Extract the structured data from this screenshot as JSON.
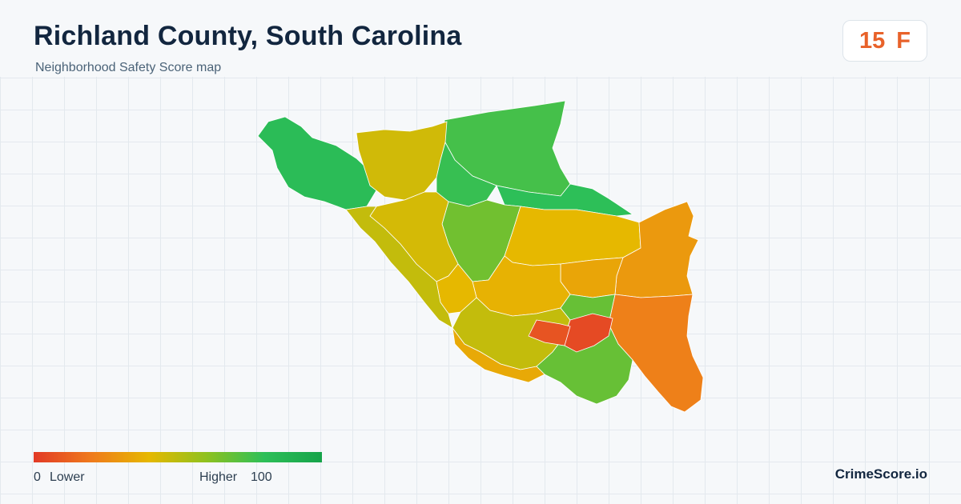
{
  "header": {
    "title": "Richland County, South Carolina",
    "subtitle": "Neighborhood Safety Score map"
  },
  "score": {
    "value": "15",
    "grade": "F",
    "color": "#e8622a"
  },
  "legend": {
    "min_value": "0",
    "min_label": "Lower",
    "max_label": "Higher",
    "max_value": "100",
    "gradient_colors": [
      "#e23a26",
      "#ef7a1c",
      "#e6b800",
      "#8ec11f",
      "#2dbf58",
      "#16a34a"
    ]
  },
  "brand": {
    "name": "CrimeScore.io"
  },
  "map": {
    "region": "Richland County",
    "regions": [
      {
        "score": 82
      },
      {
        "score": 75
      },
      {
        "score": 45
      },
      {
        "score": 78
      },
      {
        "score": 80
      },
      {
        "score": 66
      },
      {
        "score": 40
      },
      {
        "score": 30
      },
      {
        "score": 22
      },
      {
        "score": 34
      },
      {
        "score": 38
      },
      {
        "score": 48
      },
      {
        "score": 68
      },
      {
        "score": 5
      },
      {
        "score": 8
      },
      {
        "score": 44
      },
      {
        "score": 40
      },
      {
        "score": 48
      },
      {
        "score": 35
      }
    ]
  }
}
